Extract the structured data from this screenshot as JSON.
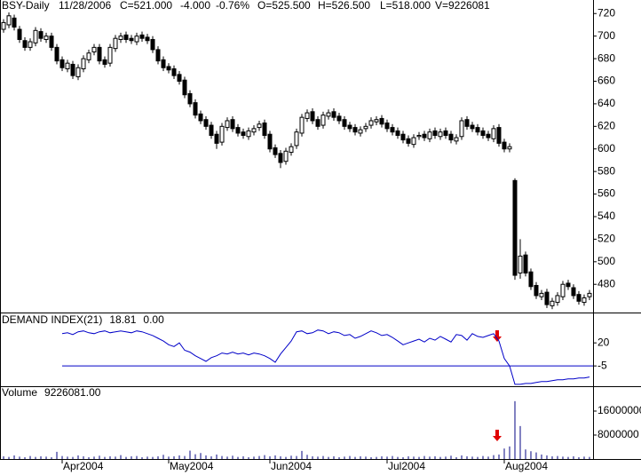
{
  "chart_data": [
    {
      "type": "candlestick",
      "title": "BSY-Daily",
      "annotations": [
        "11/28/2006",
        "C=521.000",
        "-4.000",
        "-0.76%",
        "O=525.500",
        "H=526.500",
        "L=518.000",
        "V=9226081"
      ],
      "categories": [
        null,
        null,
        null,
        null,
        null,
        null,
        null,
        null,
        null,
        null,
        null,
        null,
        null,
        null,
        null,
        null,
        null,
        null,
        null,
        null,
        null,
        null,
        null,
        null,
        null,
        null,
        null,
        null,
        null,
        null,
        null,
        null,
        null,
        null,
        null,
        null,
        null,
        null,
        null,
        null,
        null,
        null,
        null,
        null,
        null,
        null,
        null,
        null,
        null,
        null,
        null,
        null,
        null,
        null,
        null,
        null,
        null,
        null,
        null,
        null,
        null,
        null,
        null,
        null,
        null,
        null,
        null,
        null,
        null,
        null,
        null,
        null,
        null,
        null,
        null,
        null,
        null,
        null,
        null,
        null,
        null,
        null,
        null,
        null,
        null,
        null,
        null,
        null,
        null,
        null,
        null,
        null,
        null,
        null,
        null,
        null,
        null,
        null,
        null,
        null,
        null,
        null,
        null,
        null,
        null,
        null,
        null,
        null,
        null,
        null,
        null
      ],
      "open": [
        706,
        710,
        716,
        706,
        696,
        690,
        694,
        704,
        697,
        700,
        690,
        679,
        671,
        675,
        664,
        671,
        679,
        686,
        690,
        679,
        676,
        689,
        697,
        701,
        698,
        695,
        701,
        699,
        697,
        688,
        679,
        673,
        671,
        666,
        661,
        649,
        641,
        631,
        626,
        621,
        613,
        606,
        619,
        626,
        619,
        615,
        611,
        615,
        619,
        623,
        613,
        601,
        596,
        589,
        597,
        603,
        614,
        627,
        633,
        626,
        621,
        629,
        633,
        629,
        626,
        621,
        619,
        614,
        618,
        621,
        624,
        627,
        623,
        619,
        616,
        613,
        609,
        604,
        611,
        613,
        609,
        616,
        611,
        616,
        613,
        607,
        611,
        626,
        621,
        619,
        616,
        613,
        609,
        619,
        606,
        600,
        572,
        490,
        506,
        491,
        479,
        469,
        473,
        461,
        464,
        469,
        481,
        477,
        471,
        464,
        469
      ],
      "high": [
        715,
        721,
        719,
        709,
        699,
        698,
        708,
        707,
        703,
        703,
        693,
        682,
        679,
        678,
        675,
        683,
        688,
        693,
        693,
        682,
        693,
        701,
        703,
        704,
        701,
        703,
        704,
        702,
        700,
        691,
        682,
        676,
        674,
        669,
        664,
        652,
        644,
        634,
        629,
        624,
        616,
        623,
        628,
        629,
        622,
        618,
        619,
        621,
        625,
        626,
        616,
        604,
        599,
        601,
        605,
        618,
        631,
        635,
        636,
        629,
        633,
        635,
        636,
        632,
        629,
        624,
        622,
        620,
        623,
        628,
        629,
        630,
        626,
        622,
        619,
        616,
        612,
        613,
        615,
        616,
        618,
        619,
        618,
        619,
        616,
        613,
        628,
        629,
        624,
        622,
        619,
        616,
        621,
        622,
        609,
        605,
        574,
        520,
        509,
        494,
        482,
        475,
        476,
        468,
        473,
        483,
        484,
        480,
        474,
        471,
        475
      ],
      "low": [
        703,
        707,
        705,
        694,
        687,
        687,
        691,
        695,
        694,
        687,
        675,
        669,
        668,
        662,
        661,
        668,
        676,
        683,
        675,
        672,
        673,
        686,
        694,
        694,
        693,
        692,
        695,
        693,
        685,
        675,
        669,
        667,
        662,
        657,
        645,
        637,
        627,
        622,
        617,
        609,
        600,
        603,
        616,
        615,
        611,
        609,
        608,
        612,
        616,
        609,
        597,
        592,
        583,
        586,
        594,
        600,
        611,
        624,
        622,
        617,
        618,
        626,
        625,
        622,
        617,
        615,
        612,
        611,
        615,
        618,
        621,
        619,
        615,
        612,
        609,
        605,
        602,
        601,
        608,
        607,
        606,
        609,
        608,
        609,
        605,
        604,
        608,
        617,
        615,
        612,
        609,
        607,
        606,
        602,
        597,
        597,
        484,
        485,
        487,
        475,
        467,
        466,
        459,
        458,
        461,
        466,
        475,
        467,
        462,
        461,
        466
      ],
      "close": [
        712,
        718,
        708,
        697,
        690,
        695,
        705,
        698,
        700,
        690,
        678,
        672,
        676,
        665,
        672,
        680,
        685,
        690,
        678,
        675,
        690,
        698,
        700,
        697,
        696,
        700,
        698,
        696,
        688,
        678,
        672,
        670,
        665,
        660,
        648,
        640,
        630,
        625,
        620,
        612,
        605,
        620,
        625,
        618,
        614,
        612,
        616,
        618,
        622,
        612,
        600,
        595,
        588,
        598,
        602,
        615,
        628,
        632,
        625,
        620,
        630,
        632,
        628,
        625,
        620,
        618,
        615,
        617,
        620,
        625,
        626,
        622,
        618,
        615,
        612,
        608,
        605,
        610,
        612,
        610,
        615,
        612,
        615,
        612,
        608,
        610,
        625,
        620,
        618,
        615,
        612,
        610,
        618,
        605,
        600,
        602,
        488,
        505,
        490,
        478,
        470,
        472,
        462,
        465,
        470,
        480,
        478,
        470,
        465,
        468,
        472
      ],
      "up_color": "#ffffff",
      "down_color": "#000000",
      "ylim": [
        455,
        732
      ],
      "yticks": [
        480,
        500,
        520,
        540,
        560,
        580,
        600,
        620,
        640,
        660,
        680,
        700,
        720
      ]
    },
    {
      "type": "line",
      "title": "DEMAND INDEX(21)",
      "annotations": [
        "18.81",
        "0.00"
      ],
      "color": "#0000c8",
      "values": [
        null,
        null,
        null,
        null,
        null,
        null,
        null,
        null,
        null,
        null,
        null,
        30,
        31,
        29,
        32,
        33,
        31,
        30,
        32,
        33,
        31,
        32,
        33,
        32,
        31,
        33,
        32,
        30,
        28,
        25,
        22,
        18,
        16,
        20,
        12,
        10,
        6,
        3,
        0,
        4,
        6,
        9,
        8,
        10,
        8,
        9,
        7,
        9,
        8,
        6,
        3,
        -1,
        8,
        15,
        22,
        32,
        33,
        30,
        31,
        34,
        33,
        30,
        32,
        31,
        28,
        29,
        25,
        27,
        30,
        33,
        31,
        28,
        29,
        26,
        22,
        18,
        20,
        22,
        24,
        21,
        25,
        23,
        27,
        24,
        21,
        29,
        28,
        23,
        30,
        27,
        26,
        28,
        30,
        22,
        3,
        -5,
        -25,
        -25,
        -24,
        -24,
        -23,
        -22,
        -22,
        -21,
        -20,
        -20,
        -19,
        -19,
        -18,
        -18,
        -17
      ],
      "reference_line": -5,
      "ylim": [
        -27,
        51
      ],
      "yticks": [
        -5,
        20
      ]
    },
    {
      "type": "bar",
      "title": "Volume",
      "annotations": [
        "9226081.00"
      ],
      "color": "#000080",
      "values": [
        900000,
        700000,
        1200000,
        800000,
        600000,
        1000000,
        700000,
        900000,
        800000,
        600000,
        2400000,
        1000000,
        800000,
        700000,
        1200000,
        900000,
        600000,
        800000,
        1100000,
        700000,
        900000,
        800000,
        1300000,
        700000,
        900000,
        1000000,
        600000,
        800000,
        700000,
        900000,
        1400000,
        800000,
        900000,
        1200000,
        1000000,
        2800000,
        1600000,
        2000000,
        1200000,
        900000,
        1500000,
        1000000,
        800000,
        1100000,
        700000,
        900000,
        600000,
        800000,
        1000000,
        1300000,
        900000,
        1200000,
        900000,
        700000,
        1100000,
        1000000,
        2700000,
        1400000,
        900000,
        800000,
        1000000,
        700000,
        900000,
        600000,
        800000,
        1000000,
        700000,
        900000,
        800000,
        600000,
        700000,
        900000,
        800000,
        1000000,
        700000,
        600000,
        900000,
        800000,
        700000,
        1000000,
        800000,
        900000,
        700000,
        800000,
        1100000,
        600000,
        1200000,
        900000,
        800000,
        700000,
        1000000,
        800000,
        1300000,
        1500000,
        3500000,
        4200000,
        19300000,
        11000000,
        3200000,
        2600000,
        2200000,
        1500000,
        1200000,
        900000,
        1000000,
        800000,
        700000,
        900000,
        600000,
        800000,
        700000
      ],
      "ylim": [
        0,
        23700000
      ],
      "yticks": [
        8000000,
        16000000
      ],
      "xlim": [
        -0.67,
        110.67
      ],
      "xticks": [
        {
          "value": 11,
          "label": "Apr2004"
        },
        {
          "value": 31,
          "label": "May2004"
        },
        {
          "value": 50,
          "label": "Jun2004"
        },
        {
          "value": 72,
          "label": "Jul2004"
        },
        {
          "value": 94,
          "label": "Aug2004"
        }
      ]
    }
  ]
}
